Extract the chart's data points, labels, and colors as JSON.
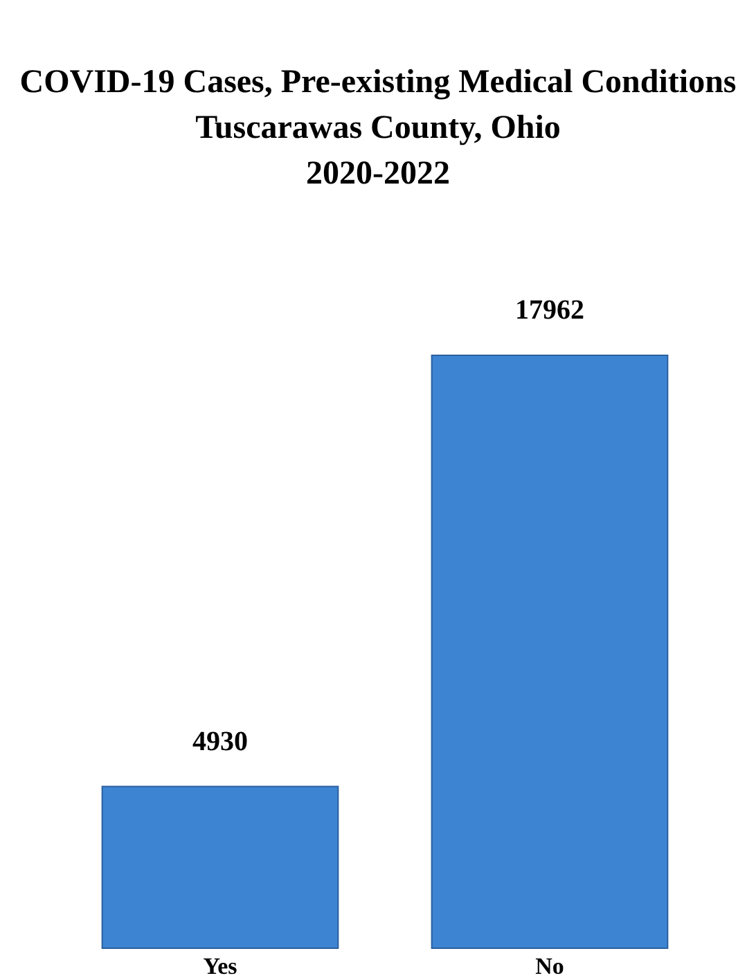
{
  "chart_data": {
    "type": "bar",
    "title": "COVID-19 Cases, Pre-existing Medical Conditions\nTuscarawas County, Ohio\n2020-2022",
    "categories": [
      "Yes",
      "No"
    ],
    "values": [
      4930,
      17962
    ],
    "color": "#3d85d3",
    "data_labels": true
  }
}
